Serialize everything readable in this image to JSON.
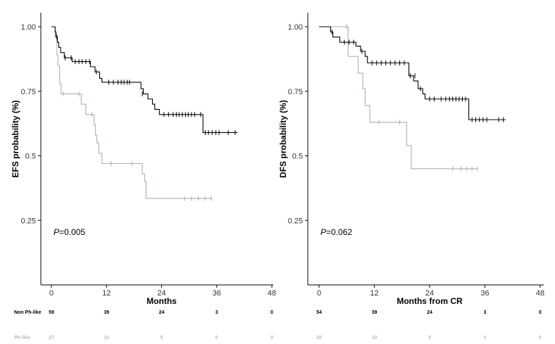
{
  "chart_data": [
    {
      "type": "line",
      "subtype": "kaplan-meier",
      "ylabel": "EFS probability (%)",
      "xlabel": "Months",
      "xlim": [
        0,
        48
      ],
      "ylim": [
        0.0,
        1.0
      ],
      "xticks": [
        0,
        12,
        24,
        36,
        48
      ],
      "yticks": [
        0.25,
        0.5,
        0.75,
        1.0
      ],
      "ytick_labels": [
        "0.25",
        "0.5",
        "0.75",
        "1.00"
      ],
      "p_prefix": "P",
      "p_value": "=0.005",
      "series": [
        {
          "name": "Non Ph-like",
          "color": "#000000",
          "steps": [
            [
              0,
              1.0
            ],
            [
              0.8,
              0.98
            ],
            [
              1.0,
              0.96
            ],
            [
              1.3,
              0.94
            ],
            [
              1.6,
              0.92
            ],
            [
              2.0,
              0.9
            ],
            [
              2.8,
              0.88
            ],
            [
              4.5,
              0.865
            ],
            [
              8.5,
              0.845
            ],
            [
              9.5,
              0.825
            ],
            [
              10.5,
              0.8
            ],
            [
              11.0,
              0.785
            ],
            [
              19.5,
              0.76
            ],
            [
              20.0,
              0.74
            ],
            [
              21.0,
              0.72
            ],
            [
              22.0,
              0.7
            ],
            [
              22.5,
              0.68
            ],
            [
              23.5,
              0.66
            ],
            [
              33.0,
              0.59
            ],
            [
              40.5,
              0.59
            ]
          ],
          "censors": [
            [
              1.2,
              0.96
            ],
            [
              3.0,
              0.88
            ],
            [
              4.3,
              0.88
            ],
            [
              5.2,
              0.865
            ],
            [
              6.0,
              0.865
            ],
            [
              6.7,
              0.865
            ],
            [
              7.5,
              0.865
            ],
            [
              8.3,
              0.865
            ],
            [
              9.8,
              0.825
            ],
            [
              12.5,
              0.785
            ],
            [
              13.5,
              0.785
            ],
            [
              14.5,
              0.785
            ],
            [
              15.2,
              0.785
            ],
            [
              15.8,
              0.785
            ],
            [
              16.5,
              0.785
            ],
            [
              17.0,
              0.785
            ],
            [
              19.8,
              0.74
            ],
            [
              24.5,
              0.66
            ],
            [
              25.5,
              0.66
            ],
            [
              26.5,
              0.66
            ],
            [
              27.2,
              0.66
            ],
            [
              27.8,
              0.66
            ],
            [
              28.5,
              0.66
            ],
            [
              29.2,
              0.66
            ],
            [
              29.8,
              0.66
            ],
            [
              30.5,
              0.66
            ],
            [
              31.2,
              0.66
            ],
            [
              32.5,
              0.66
            ],
            [
              33.5,
              0.59
            ],
            [
              34.2,
              0.59
            ],
            [
              35.0,
              0.59
            ],
            [
              35.8,
              0.59
            ],
            [
              36.5,
              0.59
            ],
            [
              38.5,
              0.59
            ],
            [
              40.0,
              0.59
            ]
          ]
        },
        {
          "name": "Ph-like",
          "color": "#a6b2b2",
          "steps": [
            [
              0,
              1.0
            ],
            [
              0.8,
              0.96
            ],
            [
              1.2,
              0.89
            ],
            [
              1.4,
              0.85
            ],
            [
              1.8,
              0.78
            ],
            [
              2.1,
              0.74
            ],
            [
              6.5,
              0.7
            ],
            [
              7.5,
              0.66
            ],
            [
              9.3,
              0.62
            ],
            [
              9.6,
              0.58
            ],
            [
              9.9,
              0.55
            ],
            [
              10.3,
              0.51
            ],
            [
              11.0,
              0.47
            ],
            [
              19.8,
              0.43
            ],
            [
              20.3,
              0.4
            ],
            [
              20.6,
              0.335
            ],
            [
              35.0,
              0.335
            ]
          ],
          "censors": [
            [
              2.6,
              0.74
            ],
            [
              6.0,
              0.74
            ],
            [
              8.8,
              0.66
            ],
            [
              13.0,
              0.47
            ],
            [
              17.5,
              0.47
            ],
            [
              29.0,
              0.335
            ],
            [
              30.5,
              0.335
            ],
            [
              32.0,
              0.335
            ],
            [
              33.5,
              0.335
            ],
            [
              34.8,
              0.335
            ]
          ]
        }
      ],
      "risk_table": {
        "rows": [
          {
            "label": "Non Ph-like",
            "color": "#000000",
            "values": [
              59,
              39,
              24,
              3,
              0
            ]
          },
          {
            "label": "Ph-like",
            "color": "#b4bcbc",
            "values": [
              27,
              10,
              5,
              0,
              0
            ]
          }
        ]
      }
    },
    {
      "type": "line",
      "subtype": "kaplan-meier",
      "ylabel": "DFS probability (%)",
      "xlabel": "Months from CR",
      "xlim": [
        0,
        48
      ],
      "ylim": [
        0.0,
        1.0
      ],
      "xticks": [
        0,
        12,
        24,
        36,
        48
      ],
      "yticks": [
        0.25,
        0.5,
        0.75,
        1.0
      ],
      "ytick_labels": [
        "0.25",
        "0.5",
        "0.75",
        "1.00"
      ],
      "p_prefix": "P",
      "p_value": "=0.062",
      "series": [
        {
          "name": "Non Ph-like",
          "color": "#000000",
          "steps": [
            [
              0,
              1.0
            ],
            [
              2.5,
              0.98
            ],
            [
              3.0,
              0.96
            ],
            [
              4.5,
              0.94
            ],
            [
              8.0,
              0.925
            ],
            [
              9.0,
              0.905
            ],
            [
              10.0,
              0.885
            ],
            [
              10.5,
              0.86
            ],
            [
              19.5,
              0.81
            ],
            [
              20.5,
              0.79
            ],
            [
              21.5,
              0.76
            ],
            [
              22.5,
              0.74
            ],
            [
              23.0,
              0.72
            ],
            [
              32.5,
              0.64
            ],
            [
              40.5,
              0.64
            ]
          ],
          "censors": [
            [
              2.8,
              0.98
            ],
            [
              5.5,
              0.94
            ],
            [
              6.5,
              0.94
            ],
            [
              7.5,
              0.94
            ],
            [
              9.3,
              0.905
            ],
            [
              11.5,
              0.86
            ],
            [
              12.5,
              0.86
            ],
            [
              13.5,
              0.86
            ],
            [
              14.5,
              0.86
            ],
            [
              15.5,
              0.86
            ],
            [
              16.5,
              0.86
            ],
            [
              17.5,
              0.86
            ],
            [
              18.5,
              0.86
            ],
            [
              19.8,
              0.81
            ],
            [
              20.8,
              0.81
            ],
            [
              22.0,
              0.76
            ],
            [
              24.0,
              0.72
            ],
            [
              25.0,
              0.72
            ],
            [
              26.5,
              0.72
            ],
            [
              27.5,
              0.72
            ],
            [
              28.3,
              0.72
            ],
            [
              29.0,
              0.72
            ],
            [
              29.7,
              0.72
            ],
            [
              30.4,
              0.72
            ],
            [
              31.1,
              0.72
            ],
            [
              31.8,
              0.72
            ],
            [
              33.2,
              0.64
            ],
            [
              34.0,
              0.64
            ],
            [
              34.8,
              0.64
            ],
            [
              35.6,
              0.64
            ],
            [
              36.4,
              0.64
            ],
            [
              39.0,
              0.64
            ],
            [
              40.0,
              0.64
            ]
          ]
        },
        {
          "name": "Ph-like",
          "color": "#a6b2b2",
          "steps": [
            [
              0,
              1.0
            ],
            [
              6.3,
              0.885
            ],
            [
              8.5,
              0.82
            ],
            [
              9.5,
              0.76
            ],
            [
              10.0,
              0.695
            ],
            [
              11.0,
              0.63
            ],
            [
              19.0,
              0.54
            ],
            [
              20.0,
              0.45
            ],
            [
              34.5,
              0.45
            ]
          ],
          "censors": [
            [
              6.0,
              1.0
            ],
            [
              13.0,
              0.63
            ],
            [
              17.5,
              0.63
            ],
            [
              29.0,
              0.45
            ],
            [
              30.8,
              0.45
            ],
            [
              32.0,
              0.45
            ],
            [
              33.2,
              0.45
            ],
            [
              34.4,
              0.45
            ]
          ]
        }
      ],
      "risk_table": {
        "rows": [
          {
            "label": "",
            "color": "#000000",
            "values": [
              54,
              39,
              24,
              3,
              0
            ]
          },
          {
            "label": "",
            "color": "#b4bcbc",
            "values": [
              20,
              10,
              5,
              0,
              0
            ]
          }
        ]
      }
    }
  ]
}
